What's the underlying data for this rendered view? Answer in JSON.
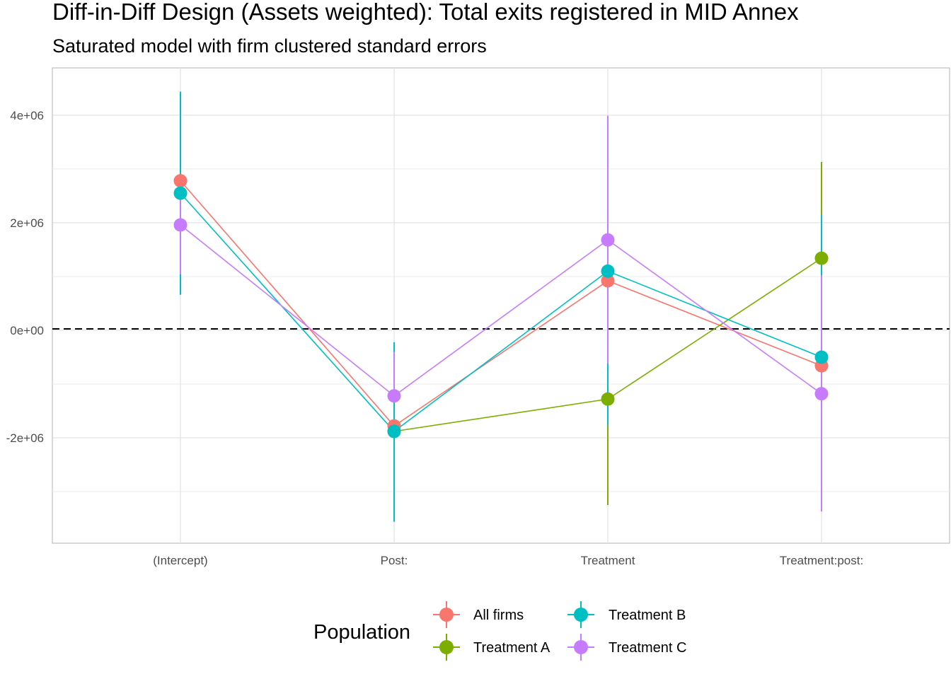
{
  "chart_data": {
    "type": "scatter",
    "title": "Diff-in-Diff Design (Assets weighted): Total exits registered in MID Annex",
    "subtitle": "Saturated model with firm clustered standard errors",
    "xlabel": "",
    "ylabel": "",
    "categories": [
      "(Intercept)",
      "Post:",
      "Treatment",
      "Treatment:post:"
    ],
    "y_ticks": [
      4000000,
      2000000,
      0,
      -2000000
    ],
    "y_tick_labels": [
      "4e+06",
      "2e+06",
      "0e+00",
      "-2e+06"
    ],
    "ylim": [
      -3960000,
      4880000
    ],
    "reference_line_y": 0,
    "grid": true,
    "legend": {
      "title": "Population",
      "position": "bottom",
      "entries": [
        "All firms",
        "Treatment A",
        "Treatment B",
        "Treatment C"
      ]
    },
    "series": [
      {
        "name": "All firms",
        "color": "#F8766D",
        "points": [
          {
            "category": "(Intercept)",
            "estimate": 2780000,
            "low": 2780000,
            "high": 2780000
          },
          {
            "category": "Post:",
            "estimate": -1780000,
            "low": -1780000,
            "high": -1780000
          },
          {
            "category": "Treatment",
            "estimate": 920000,
            "low": 920000,
            "high": 920000
          },
          {
            "category": "Treatment:post:",
            "estimate": -660000,
            "low": -660000,
            "high": -660000
          }
        ]
      },
      {
        "name": "Treatment A",
        "color": "#7CAE00",
        "points": [
          {
            "category": "Post:",
            "estimate": -1880000,
            "low": -1880000,
            "high": -1880000
          },
          {
            "category": "Treatment",
            "estimate": -1280000,
            "low": -3250000,
            "high": -1280000
          },
          {
            "category": "Treatment:post:",
            "estimate": 1340000,
            "low": 1340000,
            "high": 3130000
          }
        ]
      },
      {
        "name": "Treatment B",
        "color": "#00BFC4",
        "points": [
          {
            "category": "(Intercept)",
            "estimate": 2550000,
            "low": 660000,
            "high": 4440000
          },
          {
            "category": "Post:",
            "estimate": -1880000,
            "low": -3560000,
            "high": -220000
          },
          {
            "category": "Treatment",
            "estimate": 1100000,
            "low": -1760000,
            "high": 1100000
          },
          {
            "category": "Treatment:post:",
            "estimate": -500000,
            "low": -500000,
            "high": 2150000
          }
        ]
      },
      {
        "name": "Treatment C",
        "color": "#C77CFF",
        "points": [
          {
            "category": "(Intercept)",
            "estimate": 1960000,
            "low": 1040000,
            "high": 2880000
          },
          {
            "category": "Post:",
            "estimate": -1220000,
            "low": -1220000,
            "high": -400000
          },
          {
            "category": "Treatment",
            "estimate": 1680000,
            "low": -620000,
            "high": 3990000
          },
          {
            "category": "Treatment:post:",
            "estimate": -1180000,
            "low": -3370000,
            "high": 1020000
          }
        ]
      }
    ]
  }
}
